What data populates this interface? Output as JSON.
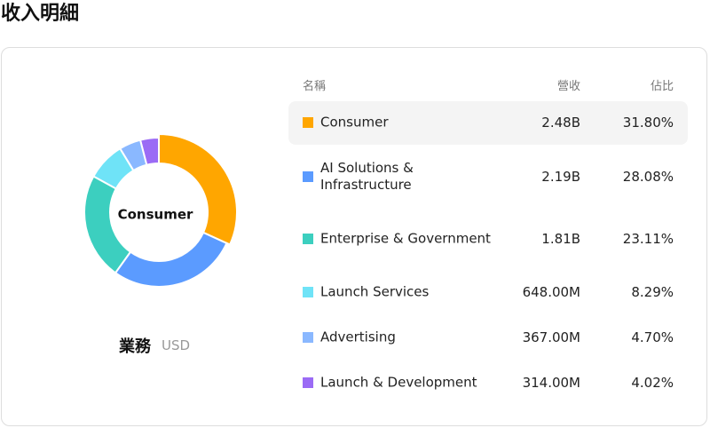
{
  "header": {
    "title": "收入明細"
  },
  "chart_data": {
    "type": "pie",
    "center_label": "Consumer",
    "caption": "業務",
    "unit": "USD",
    "categories": [
      "Consumer",
      "AI Solutions & Infrastructure",
      "Enterprise & Government",
      "Launch Services",
      "Advertising",
      "Launch & Development"
    ],
    "values": [
      31.8,
      28.08,
      23.11,
      8.29,
      4.7,
      4.02
    ],
    "value_labels": [
      "31.80%",
      "28.08%",
      "23.11%",
      "8.29%",
      "4.70%",
      "4.02%"
    ],
    "colors": [
      "#ffa600",
      "#5b9bff",
      "#3ccfbf",
      "#6fe3f7",
      "#8ab8ff",
      "#9b6bf5"
    ]
  },
  "table": {
    "columns": [
      "名稱",
      "營收",
      "佔比"
    ],
    "revenue": [
      "2.48B",
      "2.19B",
      "1.81B",
      "648.00M",
      "367.00M",
      "314.00M"
    ]
  }
}
